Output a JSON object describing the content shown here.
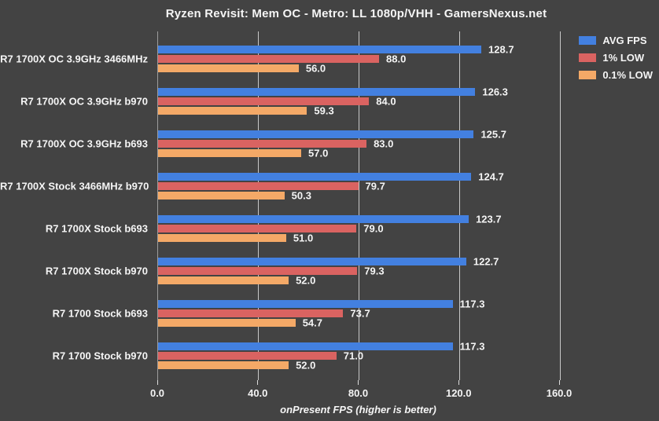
{
  "chart_data": {
    "type": "bar",
    "orientation": "horizontal",
    "title": "Ryzen Revisit: Mem OC - Metro: LL 1080p/VHH - GamersNexus.net",
    "xlabel": "onPresent FPS (higher is better)",
    "categories": [
      "R7 1700X OC 3.9GHz 3466MHz",
      "R7 1700X OC 3.9GHz b970",
      "R7 1700X OC 3.9GHz b693",
      "R7 1700X Stock 3466MHz b970",
      "R7 1700X Stock b693",
      "R7 1700X Stock b970",
      "R7 1700 Stock b693",
      "R7 1700 Stock b970"
    ],
    "series": [
      {
        "name": "AVG FPS",
        "color": "#4380E0",
        "values": [
          128.7,
          126.3,
          125.7,
          124.7,
          123.7,
          122.7,
          117.3,
          117.3
        ]
      },
      {
        "name": "1% LOW",
        "color": "#DA6361",
        "values": [
          88.0,
          84.0,
          83.0,
          79.7,
          79.0,
          79.3,
          73.7,
          71.0
        ]
      },
      {
        "name": "0.1% LOW",
        "color": "#F4A967",
        "values": [
          56.0,
          59.3,
          57.0,
          50.3,
          51.0,
          52.0,
          54.7,
          52.0
        ]
      }
    ],
    "xtick_values": [
      0,
      40,
      80,
      120,
      160
    ],
    "xtick_labels": [
      "0.0",
      "40.0",
      "80.0",
      "120.0",
      "160.0"
    ],
    "xlim": [
      0,
      160
    ],
    "grid": true,
    "value_label_decimals": 1,
    "legend_position": "top-right",
    "colors": {
      "background": "#434343",
      "text": "#F5F5F5",
      "gridline": "#C9C9C9",
      "axis_line": "#9C9C9C",
      "tick": "#DCDCDC"
    }
  }
}
